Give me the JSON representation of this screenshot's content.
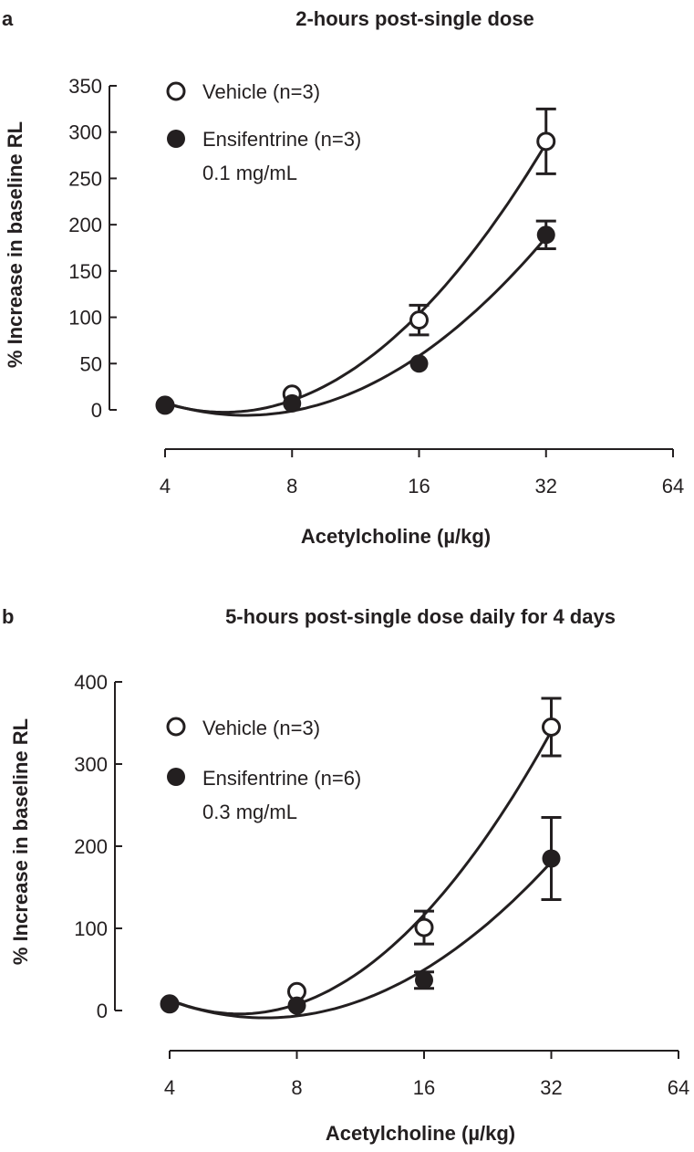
{
  "chart_data": [
    {
      "type": "line",
      "panel_label": "a",
      "title": "2-hours post-single dose",
      "xlabel": "Acetylcholine (µ/kg)",
      "ylabel": "% Increase in baseline RL",
      "x_scale": "log2",
      "x": [
        4,
        8,
        16,
        32
      ],
      "x_ticks": [
        "4",
        "8",
        "16",
        "32",
        "64"
      ],
      "xlim": [
        4,
        64
      ],
      "y_ticks": [
        "0",
        "50",
        "100",
        "150",
        "200",
        "250",
        "300",
        "350"
      ],
      "ylim": [
        0,
        350
      ],
      "legend_position": "top-left",
      "series": [
        {
          "name": "Vehicle (n=3)",
          "marker": "open-circle",
          "values": [
            5,
            17,
            97,
            290
          ],
          "error": [
            null,
            null,
            16,
            35
          ]
        },
        {
          "name": "Ensifentrine (n=3)",
          "name_line2": "0.1 mg/mL",
          "marker": "filled-circle",
          "values": [
            5,
            7,
            50,
            189
          ],
          "error": [
            null,
            null,
            null,
            15
          ]
        }
      ]
    },
    {
      "type": "line",
      "panel_label": "b",
      "title": "5-hours post-single dose daily for 4 days",
      "xlabel": "Acetylcholine (µ/kg)",
      "ylabel": "% Increase in baseline RL",
      "x_scale": "log2",
      "x": [
        4,
        8,
        16,
        32
      ],
      "x_ticks": [
        "4",
        "8",
        "16",
        "32",
        "64"
      ],
      "xlim": [
        4,
        64
      ],
      "y_ticks": [
        "0",
        "100",
        "200",
        "300",
        "400"
      ],
      "ylim": [
        0,
        400
      ],
      "legend_position": "top-left",
      "series": [
        {
          "name": "Vehicle (n=3)",
          "marker": "open-circle",
          "values": [
            8,
            23,
            101,
            345
          ],
          "error": [
            null,
            null,
            20,
            35
          ]
        },
        {
          "name": "Ensifentrine (n=6)",
          "name_line2": "0.3 mg/mL",
          "marker": "filled-circle",
          "values": [
            8,
            6,
            37,
            185
          ],
          "error": [
            null,
            null,
            10,
            50
          ]
        }
      ]
    }
  ]
}
